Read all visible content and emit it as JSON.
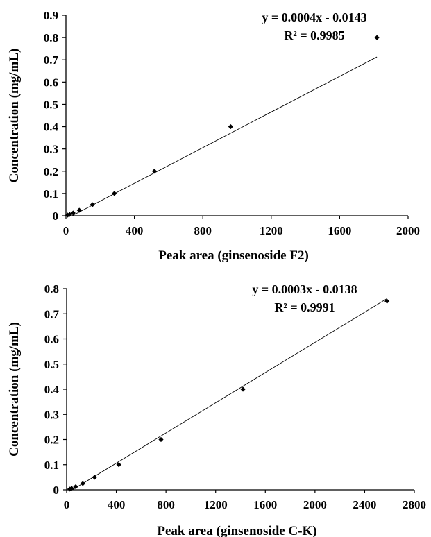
{
  "chart_data": [
    {
      "type": "scatter",
      "xlabel": "Peak area (ginsenoside F2)",
      "ylabel": "Concentration (mg/mL)",
      "xlim": [
        0,
        2000
      ],
      "ylim": [
        0,
        0.9
      ],
      "xticks": [
        "0",
        "400",
        "800",
        "1200",
        "1600",
        "2000"
      ],
      "yticks": [
        "0",
        "0.1",
        "0.2",
        "0.3",
        "0.4",
        "0.5",
        "0.6",
        "0.7",
        "0.8",
        "0.9"
      ],
      "grid": false,
      "marker": "diamond",
      "points": [
        {
          "x": 10,
          "y": 0.003
        },
        {
          "x": 22,
          "y": 0.006
        },
        {
          "x": 42,
          "y": 0.0125
        },
        {
          "x": 78,
          "y": 0.025
        },
        {
          "x": 155,
          "y": 0.05
        },
        {
          "x": 283,
          "y": 0.1
        },
        {
          "x": 517,
          "y": 0.2
        },
        {
          "x": 963,
          "y": 0.4
        },
        {
          "x": 1818,
          "y": 0.8
        }
      ],
      "trendline": {
        "slope": 0.0004,
        "intercept": -0.0143
      },
      "equation": "y = 0.0004x - 0.0143",
      "r2": "R² = 0.9985"
    },
    {
      "type": "scatter",
      "xlabel": "Peak area (ginsenoside C-K)",
      "ylabel": "Concentration (mg/mL)",
      "xlim": [
        0,
        2800
      ],
      "ylim": [
        0,
        0.8
      ],
      "xticks": [
        "0",
        "400",
        "800",
        "1200",
        "1600",
        "2000",
        "2400",
        "2800"
      ],
      "yticks": [
        "0",
        "0.1",
        "0.2",
        "0.3",
        "0.4",
        "0.5",
        "0.6",
        "0.7",
        "0.8"
      ],
      "grid": false,
      "marker": "diamond",
      "points": [
        {
          "x": 25,
          "y": 0.003
        },
        {
          "x": 40,
          "y": 0.006
        },
        {
          "x": 73,
          "y": 0.0125
        },
        {
          "x": 130,
          "y": 0.025
        },
        {
          "x": 225,
          "y": 0.05
        },
        {
          "x": 420,
          "y": 0.1
        },
        {
          "x": 760,
          "y": 0.2
        },
        {
          "x": 1420,
          "y": 0.4
        },
        {
          "x": 2580,
          "y": 0.75
        }
      ],
      "trendline": {
        "slope": 0.0003,
        "intercept": -0.0138
      },
      "equation": "y = 0.0003x - 0.0138",
      "r2": "R² = 0.9991"
    }
  ]
}
